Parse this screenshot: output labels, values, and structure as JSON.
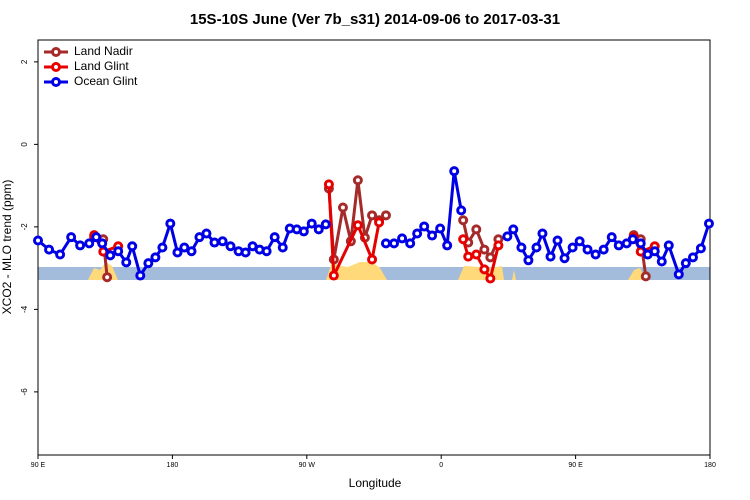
{
  "chart_data": {
    "type": "line",
    "title": "15S-10S June (Ver 7b_s31)   2014-09-06 to 2017-03-31",
    "xlabel": "Longitude",
    "ylabel": "XCO2 - MLO trend (ppm)",
    "xlim": [
      90,
      540
    ],
    "ylim": [
      -7.53,
      2.53
    ],
    "xticks": [
      {
        "value": 90,
        "label": "90 E"
      },
      180,
      {
        "value": 270,
        "label": "90 W"
      },
      {
        "value": 360,
        "label": "0"
      },
      {
        "value": 450,
        "label": "90 E"
      },
      {
        "value": 540,
        "label": "180"
      }
    ],
    "yticks": [
      2,
      0,
      -2,
      -4,
      -6
    ],
    "legend": "top-left",
    "series": [
      {
        "name": "Land Nadir",
        "color": "#a52a2a",
        "x": [
          127.6,
          133.7,
          136.3,
          null,
          284.8,
          288.1,
          294.2,
          299.5,
          304.2,
          308.9,
          313.7,
          318.4,
          323,
          null,
          374.7,
          378.1,
          383.5,
          388.9,
          392.9,
          398.3,
          null,
          488.9,
          493.6,
          497
        ],
        "values": [
          -2.25,
          -2.3,
          -3.22,
          null,
          -1.07,
          -2.79,
          -1.53,
          -2.35,
          -0.87,
          -2.26,
          -1.72,
          -1.84,
          -1.72,
          null,
          -1.84,
          -2.38,
          -2.06,
          -2.55,
          -2.74,
          -2.3,
          null,
          -2.2,
          -2.3,
          -3.2
        ]
      },
      {
        "name": "Land Glint",
        "color": "#e60000",
        "x": [
          127.6,
          133.7,
          143.7,
          null,
          284.8,
          288.1,
          304.2,
          313.7,
          318.4,
          null,
          374.7,
          378.1,
          383.5,
          388.9,
          392.9,
          398.3,
          null,
          488.9,
          493.6,
          503
        ],
        "values": [
          -2.2,
          -2.6,
          -2.47,
          null,
          -0.97,
          -3.18,
          -1.96,
          -2.79,
          -1.89,
          null,
          -2.3,
          -2.72,
          -2.67,
          -3.03,
          -3.25,
          -2.45,
          null,
          -2.25,
          -2.6,
          -2.47
        ]
      },
      {
        "name": "Ocean Glint",
        "color": "#0000e6",
        "x": [
          90,
          97.4,
          104.8,
          112.2,
          118.2,
          124.3,
          129,
          133,
          138.4,
          143.7,
          149.1,
          153.1,
          158.5,
          163.9,
          168.6,
          173.3,
          178.6,
          183.4,
          188,
          192.8,
          198.1,
          202.8,
          208.2,
          213.6,
          218.9,
          224.3,
          229,
          233.7,
          238.4,
          243.1,
          248.5,
          253.9,
          258.6,
          263.3,
          268,
          273.3,
          278,
          282.7,
          null,
          323,
          328.4,
          333.8,
          339.2,
          343.9,
          348.6,
          353.9,
          359.3,
          364,
          368.7,
          373.4,
          null,
          404.3,
          408.3,
          413.7,
          418.4,
          423.8,
          427.8,
          433.2,
          437.9,
          442.6,
          448,
          452.7,
          458,
          463.4,
          468.8,
          474.2,
          478.9,
          484.2,
          488.3,
          493.6,
          498.3,
          503,
          507.7,
          512.4,
          519.1,
          523.8,
          528.6,
          533.9,
          539.3
        ],
        "values": [
          -2.33,
          -2.55,
          -2.67,
          -2.25,
          -2.45,
          -2.4,
          -2.25,
          -2.4,
          -2.69,
          -2.59,
          -2.86,
          -2.47,
          -3.18,
          -2.88,
          -2.74,
          -2.5,
          -1.92,
          -2.62,
          -2.5,
          -2.59,
          -2.25,
          -2.16,
          -2.38,
          -2.35,
          -2.47,
          -2.59,
          -2.62,
          -2.47,
          -2.55,
          -2.59,
          -2.25,
          -2.5,
          -2.04,
          -2.06,
          -2.11,
          -1.92,
          -2.06,
          -1.94,
          null,
          -2.4,
          -2.4,
          -2.28,
          -2.4,
          -2.16,
          -1.99,
          -2.21,
          -2.04,
          -2.45,
          -0.65,
          -1.6,
          null,
          -2.23,
          -2.06,
          -2.5,
          -2.81,
          -2.5,
          -2.16,
          -2.72,
          -2.33,
          -2.76,
          -2.5,
          -2.35,
          -2.55,
          -2.67,
          -2.55,
          -2.25,
          -2.45,
          -2.4,
          -2.3,
          -2.4,
          -2.67,
          -2.59,
          -2.84,
          -2.45,
          -3.15,
          -2.88,
          -2.74,
          -2.52,
          -1.92
        ]
      }
    ]
  }
}
